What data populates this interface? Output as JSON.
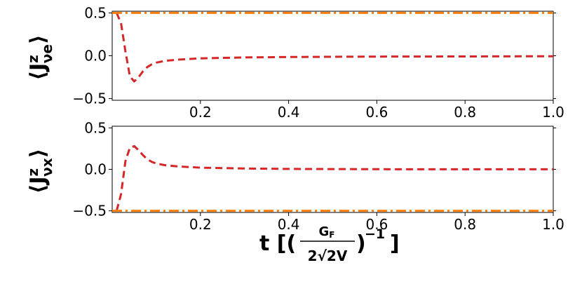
{
  "chart_data": [
    {
      "type": "line",
      "ylabel": "⟨J^z_νe⟩",
      "ylabel_main": "⟨J",
      "ylabel_sup": "z",
      "ylabel_sub": "νe",
      "ylabel_close": "⟩",
      "xlim": [
        0.0,
        1.0
      ],
      "ylim": [
        -0.52,
        0.52
      ],
      "xticks": [
        0.2,
        0.4,
        0.6,
        0.8,
        1.0
      ],
      "xtick_labels": [
        "0.2",
        "0.4",
        "0.6",
        "0.8",
        "1.0"
      ],
      "yticks": [
        0.5,
        0.0,
        -0.5
      ],
      "ytick_labels": [
        "0.5",
        "0.0",
        "−0.5"
      ],
      "series": [
        {
          "style": "dashed",
          "color": "#d62728",
          "x": [
            0.01,
            0.02,
            0.03,
            0.04,
            0.05,
            0.06,
            0.07,
            0.08,
            0.09,
            0.1,
            0.12,
            0.15,
            0.2,
            0.3,
            0.4,
            0.6,
            0.8,
            1.0
          ],
          "y": [
            0.5,
            0.38,
            0.05,
            -0.24,
            -0.3,
            -0.25,
            -0.18,
            -0.13,
            -0.1,
            -0.08,
            -0.06,
            -0.045,
            -0.03,
            -0.02,
            -0.015,
            -0.01,
            -0.008,
            -0.006
          ]
        },
        {
          "style": "dashdot",
          "color": "#ff7f0e",
          "x": [
            0.0,
            1.0
          ],
          "y": [
            0.5,
            0.5
          ]
        }
      ]
    },
    {
      "type": "line",
      "ylabel": "⟨J^z_νx⟩",
      "ylabel_main": "⟨J",
      "ylabel_sup": "z",
      "ylabel_sub": "νx",
      "ylabel_close": "⟩",
      "xlabel": "t [(G_F/(2√2V))^−1]",
      "xlabel_t": "t [(",
      "xlabel_num": "G",
      "xlabel_num_sub": "F",
      "xlabel_den": "2√2V",
      "xlabel_close": ")",
      "xlabel_exp": "−1",
      "xlabel_end": "]",
      "xlim": [
        0.0,
        1.0
      ],
      "ylim": [
        -0.52,
        0.52
      ],
      "xticks": [
        0.2,
        0.4,
        0.6,
        0.8,
        1.0
      ],
      "xtick_labels": [
        "0.2",
        "0.4",
        "0.6",
        "0.8",
        "1.0"
      ],
      "yticks": [
        0.5,
        0.0,
        -0.5
      ],
      "ytick_labels": [
        "0.5",
        "0.0",
        "−0.5"
      ],
      "series": [
        {
          "style": "dashed",
          "color": "#d62728",
          "x": [
            0.01,
            0.02,
            0.03,
            0.04,
            0.05,
            0.06,
            0.07,
            0.08,
            0.09,
            0.1,
            0.12,
            0.15,
            0.2,
            0.3,
            0.4,
            0.6,
            0.8,
            1.0
          ],
          "y": [
            -0.5,
            -0.3,
            0.1,
            0.26,
            0.28,
            0.23,
            0.17,
            0.12,
            0.09,
            0.07,
            0.05,
            0.035,
            0.02,
            0.01,
            0.005,
            0.002,
            0.001,
            0.001
          ]
        },
        {
          "style": "dashdot",
          "color": "#ff7f0e",
          "x": [
            0.0,
            1.0
          ],
          "y": [
            -0.5,
            -0.5
          ]
        }
      ]
    }
  ]
}
